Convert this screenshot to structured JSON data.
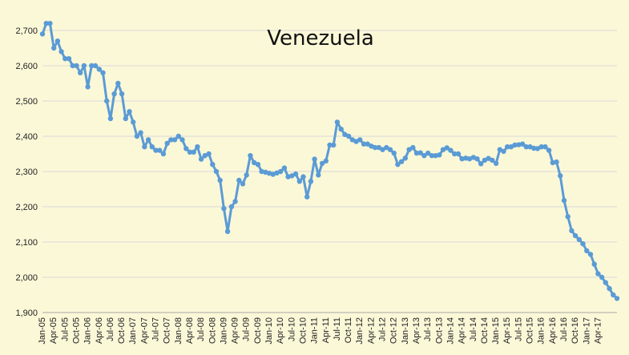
{
  "chart_data": {
    "type": "line",
    "title": "Venezuela",
    "xlabel": "",
    "ylabel": "",
    "ylim": [
      1900,
      2700
    ],
    "yticks": [
      "1,900",
      "2,000",
      "2,100",
      "2,200",
      "2,300",
      "2,400",
      "2,500",
      "2,600",
      "2,700"
    ],
    "ytick_values": [
      1900,
      2000,
      2100,
      2200,
      2300,
      2400,
      2500,
      2600,
      2700
    ],
    "grid": true,
    "legend": "none",
    "line_color": "#5b9bd5",
    "x_tick_labels": [
      "Jan-05",
      "Apr-05",
      "Jul-05",
      "Oct-05",
      "Jan-06",
      "Apr-06",
      "Jul-06",
      "Oct-06",
      "Jan-07",
      "Apr-07",
      "Jul-07",
      "Oct-07",
      "Jan-08",
      "Apr-08",
      "Jul-08",
      "Oct-08",
      "Jan-09",
      "Apr-09",
      "Jul-09",
      "Oct-09",
      "Jan-10",
      "Apr-10",
      "Jul-10",
      "Oct-10",
      "Jan-11",
      "Apr-11",
      "Jul-11",
      "Oct-11",
      "Jan-12",
      "Apr-12",
      "Jul-12",
      "Oct-12",
      "Jan-13",
      "Apr-13",
      "Jul-13",
      "Oct-13",
      "Jan-14",
      "Apr-14",
      "Jul-14",
      "Oct-14",
      "Jan-15",
      "Apr-15",
      "Jul-15",
      "Oct-15",
      "Jan-16",
      "Apr-16",
      "Jul-16",
      "Oct-16",
      "Jan-17",
      "Apr-17"
    ],
    "series": [
      {
        "values": [
          2690,
          2720,
          2720,
          2650,
          2670,
          2640,
          2620,
          2620,
          2600,
          2600,
          2580,
          2600,
          2540,
          2600,
          2600,
          2590,
          2580,
          2500,
          2450,
          2520,
          2550,
          2520,
          2450,
          2470,
          2440,
          2400,
          2410,
          2370,
          2390,
          2370,
          2360,
          2360,
          2350,
          2380,
          2390,
          2390,
          2400,
          2390,
          2365,
          2355,
          2355,
          2370,
          2335,
          2345,
          2350,
          2320,
          2300,
          2275,
          2195,
          2130,
          2200,
          2215,
          2275,
          2265,
          2290,
          2345,
          2325,
          2320,
          2300,
          2298,
          2295,
          2292,
          2296,
          2300,
          2310,
          2285,
          2288,
          2293,
          2272,
          2285,
          2228,
          2272,
          2335,
          2290,
          2323,
          2330,
          2375,
          2375,
          2440,
          2420,
          2405,
          2400,
          2390,
          2385,
          2390,
          2378,
          2378,
          2372,
          2368,
          2368,
          2362,
          2368,
          2362,
          2352,
          2320,
          2328,
          2338,
          2362,
          2368,
          2352,
          2353,
          2345,
          2352,
          2345,
          2345,
          2347,
          2362,
          2367,
          2360,
          2350,
          2350,
          2336,
          2338,
          2336,
          2340,
          2336,
          2322,
          2332,
          2337,
          2332,
          2323,
          2362,
          2357,
          2370,
          2370,
          2375,
          2376,
          2378,
          2370,
          2370,
          2366,
          2365,
          2370,
          2370,
          2360,
          2325,
          2327,
          2288,
          2218,
          2172,
          2132,
          2118,
          2107,
          2095,
          2075,
          2065,
          2037,
          2010,
          2000,
          1985,
          1968,
          1950,
          1940
        ]
      }
    ]
  }
}
